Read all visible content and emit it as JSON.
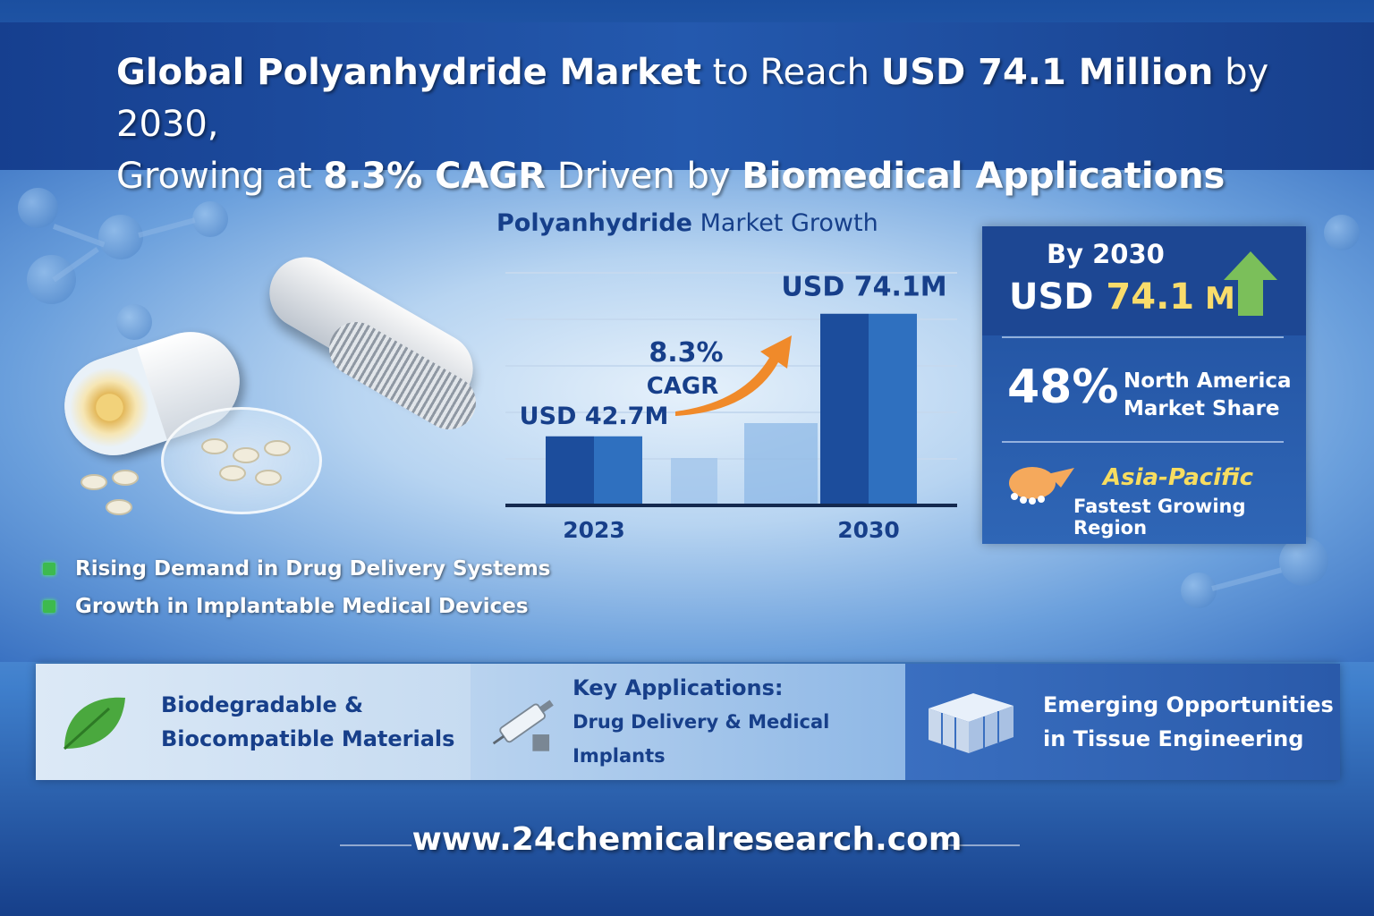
{
  "title": {
    "line1": [
      {
        "t": "Global Polyanhydride Market",
        "b": true
      },
      {
        "t": " to Reach ",
        "b": false
      },
      {
        "t": "USD 74.1 Million",
        "b": true
      },
      {
        "t": " by 2030,",
        "b": false
      }
    ],
    "line2": [
      {
        "t": "Growing at ",
        "b": false
      },
      {
        "t": "8.3% CAGR",
        "b": true
      },
      {
        "t": " Driven by ",
        "b": false
      },
      {
        "t": "Biomedical Applications",
        "b": true
      }
    ]
  },
  "chart_title": {
    "bold": "Polyanhydride",
    "rest": " Market Growth"
  },
  "chart_data": {
    "type": "bar",
    "title": "Polyanhydride Market Growth",
    "categories": [
      "2023",
      "2030"
    ],
    "values": [
      42.7,
      74.1
    ],
    "data_labels": [
      "USD 42.7M",
      "USD 74.1M"
    ],
    "units": "USD Million",
    "ylim": [
      25,
      80
    ],
    "grid": true,
    "annotation": {
      "value": "8.3%",
      "label": "CAGR"
    },
    "colors": {
      "bar": "#1c4d9c",
      "bar_light": "#2f70bf",
      "arrow": "#f08a2a",
      "text": "#173f8a"
    }
  },
  "bullets": [
    "Rising Demand in Drug Delivery Systems",
    "Growth in Implantable Medical Devices"
  ],
  "panel": {
    "by": "By 2030",
    "usd_prefix": "USD ",
    "usd_value": "74.1",
    "usd_suffix": " M",
    "share_pct": "48%",
    "share_line1": "North America",
    "share_line2": "Market Share",
    "region": "Asia-Pacific",
    "region_desc": "Fastest Growing Region",
    "icons": [
      "green-arrow-up-icon",
      "hand-map-icon"
    ]
  },
  "cards": [
    {
      "l1": "Biodegradable &",
      "l2": "Biocompatible Materials",
      "icon": "leaf-icon"
    },
    {
      "l1": "Key Applications:",
      "l2": "Drug Delivery & Medical Implants",
      "icon": "syringe-icon"
    },
    {
      "l1": "Emerging Opportunities",
      "l2": "in Tissue Engineering",
      "icon": "scaffold-icon"
    }
  ],
  "footer": {
    "url": "www.24chemicalresearch.com"
  },
  "colors": {
    "accent_yellow": "#f9dc6b",
    "navy": "#173f8a",
    "green": "#3dba4e",
    "orange": "#f08a2a"
  }
}
